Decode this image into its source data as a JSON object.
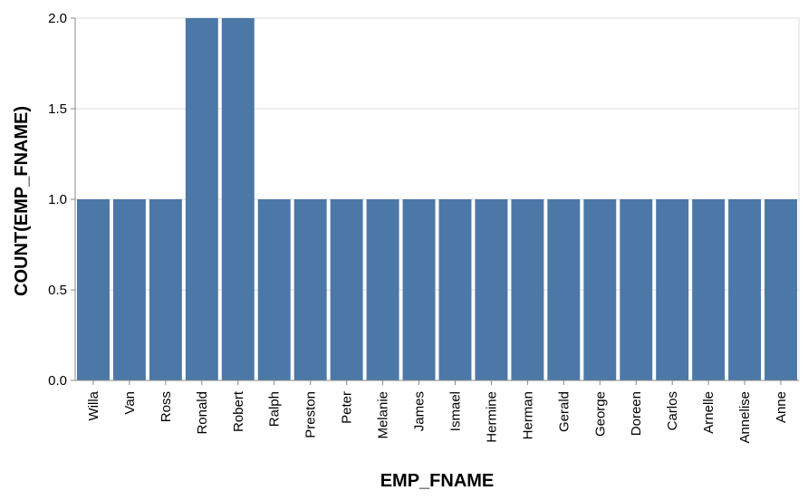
{
  "chart_data": {
    "type": "bar",
    "title": "",
    "xlabel": "EMP_FNAME",
    "ylabel": "COUNT(EMP_FNAME)",
    "ylim": [
      0,
      2.0
    ],
    "yticks": [
      "0.0",
      "0.5",
      "1.0",
      "1.5",
      "2.0"
    ],
    "grid": true,
    "categories": [
      "Willa",
      "Van",
      "Ross",
      "Ronald",
      "Robert",
      "Ralph",
      "Preston",
      "Peter",
      "Melanie",
      "James",
      "Ismael",
      "Hermine",
      "Herman",
      "Gerald",
      "George",
      "Doreen",
      "Carlos",
      "Arnelle",
      "Annelise",
      "Anne"
    ],
    "values": [
      1,
      1,
      1,
      2,
      2,
      1,
      1,
      1,
      1,
      1,
      1,
      1,
      1,
      1,
      1,
      1,
      1,
      1,
      1,
      1
    ],
    "colors": {
      "bar": "#4c78a8",
      "grid": "#dddddd",
      "axis": "#888888"
    }
  }
}
